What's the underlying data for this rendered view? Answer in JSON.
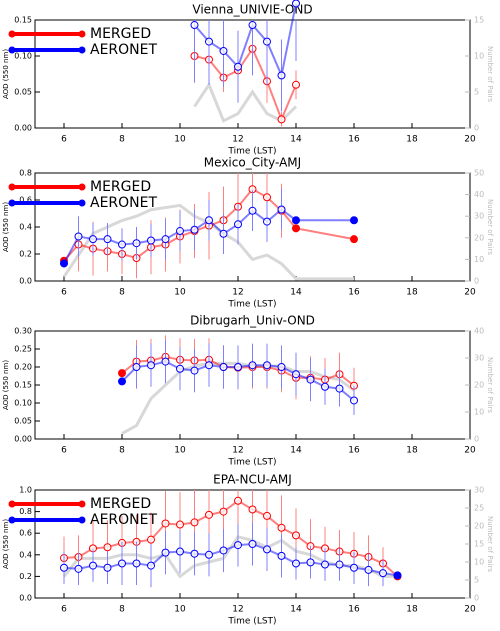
{
  "chart_data": [
    {
      "type": "line",
      "title": "Vienna_UNIVIE-OND",
      "x_label": "Time (LST)",
      "y_label": "AOD (550 nm)",
      "y2_label": "Number of Pairs",
      "xlim": [
        5,
        20
      ],
      "xticks": [
        6,
        8,
        10,
        12,
        14,
        16,
        18,
        20
      ],
      "ylim": [
        0,
        0.15
      ],
      "yticks": [
        {
          "value": 0,
          "label": "0.00"
        },
        {
          "value": 0.05,
          "label": "0.05"
        },
        {
          "value": 0.1,
          "label": "0.10"
        },
        {
          "value": 0.15,
          "label": "0.15"
        }
      ],
      "y2lim": [
        0,
        15
      ],
      "y2ticks": [
        0,
        5,
        10,
        15
      ],
      "legend": "upper left",
      "x": [
        10.5,
        11,
        11.5,
        12,
        12.5,
        13,
        13.5,
        14
      ],
      "series": [
        {
          "name": "MERGED",
          "color": "#ff0000",
          "values": [
            0.1,
            0.095,
            0.07,
            0.08,
            0.11,
            0.065,
            0.012,
            0.06
          ],
          "errors": [
            0.03,
            0.02,
            0.02,
            0.02,
            0.03,
            0.03,
            0.01,
            0.02
          ]
        },
        {
          "name": "AERONET",
          "color": "#0000ff",
          "values": [
            0.143,
            0.12,
            0.107,
            0.085,
            0.143,
            0.12,
            0.073,
            0.173
          ],
          "errors": [
            0.08,
            0.06,
            0.05,
            0.05,
            0.07,
            0.06,
            0.05,
            0.08
          ]
        },
        {
          "color": "#d8d8d8",
          "axis": "y2",
          "values": [
            3,
            6,
            1,
            2,
            5,
            2,
            1,
            3
          ]
        }
      ]
    },
    {
      "type": "line",
      "title": "Mexico_City-AMJ",
      "x_label": "Time (LST)",
      "y_label": "AOD (550 nm)",
      "y2_label": "Number of Pairs",
      "xlim": [
        5,
        20
      ],
      "xticks": [
        6,
        8,
        10,
        12,
        14,
        16,
        18,
        20
      ],
      "ylim": [
        0,
        0.8
      ],
      "yticks": [
        {
          "value": 0,
          "label": "0.0"
        },
        {
          "value": 0.2,
          "label": "0.2"
        },
        {
          "value": 0.4,
          "label": "0.4"
        },
        {
          "value": 0.6,
          "label": "0.6"
        },
        {
          "value": 0.8,
          "label": "0.8"
        }
      ],
      "y2lim": [
        0,
        50
      ],
      "y2ticks": [
        0,
        10,
        20,
        30,
        40,
        50
      ],
      "legend": "upper left",
      "x": [
        6,
        6.5,
        7,
        7.5,
        8,
        8.5,
        9,
        9.5,
        10,
        10.5,
        11,
        11.5,
        12,
        12.5,
        13,
        13.5,
        14,
        16
      ],
      "series": [
        {
          "name": "MERGED",
          "color": "#ff0000",
          "values": [
            0.15,
            0.27,
            0.24,
            0.22,
            0.2,
            0.17,
            0.25,
            0.27,
            0.33,
            0.37,
            0.41,
            0.45,
            0.55,
            0.68,
            0.62,
            0.52,
            0.39,
            0.31
          ],
          "errors": [
            null,
            0.2,
            0.2,
            0.15,
            0.15,
            0.15,
            0.2,
            0.2,
            0.2,
            0.2,
            0.25,
            0.25,
            0.25,
            0.2,
            0.2,
            0.2,
            null,
            null
          ]
        },
        {
          "name": "AERONET",
          "color": "#0000ff",
          "values": [
            0.13,
            0.33,
            0.31,
            0.31,
            0.27,
            0.28,
            0.3,
            0.31,
            0.37,
            0.38,
            0.45,
            0.35,
            0.42,
            0.52,
            0.44,
            0.53,
            0.45,
            0.45
          ],
          "errors": [
            null,
            0.15,
            0.12,
            0.12,
            0.12,
            0.12,
            0.12,
            0.15,
            0.15,
            0.15,
            0.15,
            0.15,
            0.15,
            0.15,
            0.15,
            0.15,
            null,
            null
          ]
        },
        {
          "color": "#d8d8d8",
          "axis": "y2",
          "values": [
            2,
            12,
            22,
            25,
            28,
            30,
            33,
            34,
            35,
            30,
            27,
            22,
            18,
            10,
            12,
            8,
            1,
            1
          ]
        }
      ]
    },
    {
      "type": "line",
      "title": "Dibrugarh_Univ-OND",
      "x_label": "Time (LST)",
      "y_label": "AOD (550 nm)",
      "y2_label": "Number of Pairs",
      "xlim": [
        5,
        20
      ],
      "xticks": [
        6,
        8,
        10,
        12,
        14,
        16,
        18,
        20
      ],
      "ylim": [
        0,
        0.3
      ],
      "yticks": [
        {
          "value": 0,
          "label": "0.00"
        },
        {
          "value": 0.05,
          "label": "0.05"
        },
        {
          "value": 0.1,
          "label": "0.10"
        },
        {
          "value": 0.15,
          "label": "0.15"
        },
        {
          "value": 0.2,
          "label": "0.20"
        },
        {
          "value": 0.25,
          "label": "0.25"
        },
        {
          "value": 0.3,
          "label": "0.30"
        }
      ],
      "y2lim": [
        0,
        40
      ],
      "y2ticks": [
        0,
        10,
        20,
        30,
        40
      ],
      "x": [
        8,
        8.5,
        9,
        9.5,
        10,
        10.5,
        11,
        11.5,
        12,
        12.5,
        13,
        13.5,
        14,
        14.5,
        15,
        15.5,
        16
      ],
      "series": [
        {
          "color": "#ff0000",
          "values": [
            0.183,
            0.215,
            0.218,
            0.228,
            0.22,
            0.218,
            0.22,
            0.2,
            0.198,
            0.2,
            0.2,
            0.19,
            0.17,
            0.17,
            0.165,
            0.18,
            0.148
          ],
          "errors": [
            null,
            0.06,
            0.06,
            0.06,
            0.06,
            0.06,
            0.06,
            0.06,
            0.06,
            0.06,
            0.06,
            0.06,
            0.06,
            0.06,
            0.06,
            0.06,
            0.05
          ]
        },
        {
          "color": "#0000ff",
          "values": [
            0.16,
            0.2,
            0.205,
            0.215,
            0.195,
            0.19,
            0.205,
            0.2,
            0.2,
            0.205,
            0.205,
            0.2,
            0.18,
            0.165,
            0.145,
            0.14,
            0.107
          ],
          "errors": [
            null,
            0.06,
            0.06,
            0.06,
            0.06,
            0.06,
            0.06,
            0.06,
            0.06,
            0.06,
            0.06,
            0.06,
            0.06,
            0.06,
            0.05,
            0.05,
            0.04
          ]
        },
        {
          "color": "#d8d8d8",
          "axis": "y2",
          "values": [
            2,
            5,
            15,
            20,
            25,
            27,
            28,
            28,
            28,
            27,
            27,
            27,
            25,
            25,
            23,
            22,
            18
          ]
        }
      ]
    },
    {
      "type": "line",
      "title": "EPA-NCU-AMJ",
      "x_label": "Time (LST)",
      "y_label": "AOD (550 nm)",
      "y2_label": "Number of Pairs",
      "xlim": [
        5,
        20
      ],
      "xticks": [
        6,
        8,
        10,
        12,
        14,
        16,
        18,
        20
      ],
      "ylim": [
        0,
        1
      ],
      "yticks": [
        {
          "value": 0,
          "label": "0.0"
        },
        {
          "value": 0.2,
          "label": "0.2"
        },
        {
          "value": 0.4,
          "label": "0.4"
        },
        {
          "value": 0.6,
          "label": "0.6"
        },
        {
          "value": 0.8,
          "label": "0.8"
        },
        {
          "value": 1,
          "label": "1.0"
        }
      ],
      "y2lim": [
        0,
        30
      ],
      "y2ticks": [
        0,
        5,
        10,
        15,
        20,
        25,
        30
      ],
      "legend": "upper left",
      "x": [
        6,
        6.5,
        7,
        7.5,
        8,
        8.5,
        9,
        9.5,
        10,
        10.5,
        11,
        11.5,
        12,
        12.5,
        13,
        13.5,
        14,
        14.5,
        15,
        15.5,
        16,
        16.5,
        17,
        17.5
      ],
      "series": [
        {
          "name": "MERGED",
          "color": "#ff0000",
          "values": [
            0.37,
            0.38,
            0.46,
            0.47,
            0.51,
            0.52,
            0.54,
            0.69,
            0.68,
            0.7,
            0.77,
            0.8,
            0.9,
            0.82,
            0.76,
            0.65,
            0.58,
            0.48,
            0.46,
            0.43,
            0.41,
            0.38,
            0.32,
            0.2
          ],
          "errors": [
            0.2,
            0.2,
            0.25,
            0.25,
            0.25,
            0.25,
            0.25,
            0.3,
            0.3,
            0.3,
            0.35,
            0.3,
            0.3,
            0.3,
            0.3,
            0.3,
            0.25,
            0.25,
            0.2,
            0.2,
            0.2,
            0.2,
            0.15,
            null
          ]
        },
        {
          "name": "AERONET",
          "color": "#0000ff",
          "values": [
            0.28,
            0.27,
            0.3,
            0.28,
            0.32,
            0.32,
            0.3,
            0.42,
            0.43,
            0.41,
            0.4,
            0.44,
            0.49,
            0.5,
            0.45,
            0.39,
            0.32,
            0.33,
            0.31,
            0.31,
            0.28,
            0.26,
            0.23,
            0.21
          ],
          "errors": [
            0.15,
            0.15,
            0.15,
            0.15,
            0.2,
            0.2,
            0.2,
            0.2,
            0.2,
            0.2,
            0.2,
            0.2,
            0.2,
            0.2,
            0.2,
            0.2,
            0.15,
            0.15,
            0.15,
            0.15,
            0.15,
            0.15,
            0.12,
            null
          ]
        },
        {
          "color": "#d8d8d8",
          "axis": "y2",
          "values": [
            6,
            11,
            11,
            11,
            12,
            12,
            11,
            12,
            6,
            9,
            10,
            11,
            17,
            16,
            14,
            16,
            13,
            12,
            10,
            9,
            9,
            8,
            6,
            6
          ]
        }
      ]
    }
  ]
}
